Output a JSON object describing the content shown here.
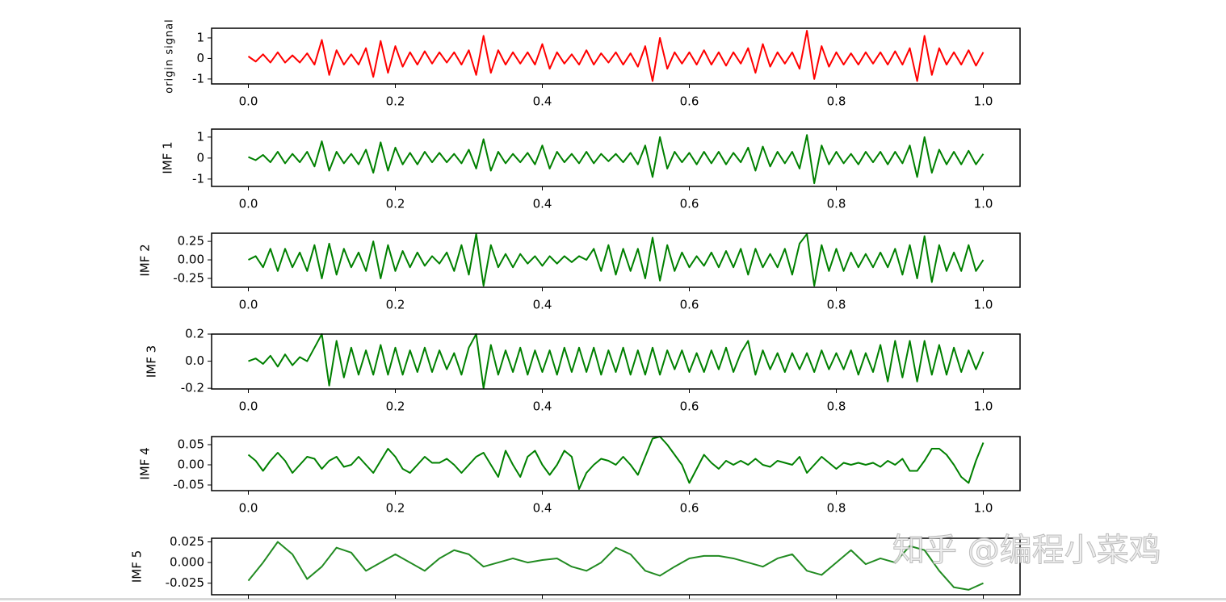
{
  "chart_data": [
    {
      "type": "line",
      "ylabel": "origin signal",
      "color": "#ff0000",
      "x": [
        0,
        0.01,
        0.02,
        0.03,
        0.04,
        0.05,
        0.06,
        0.07,
        0.08,
        0.09,
        0.1,
        0.11,
        0.12,
        0.13,
        0.14,
        0.15,
        0.16,
        0.17,
        0.18,
        0.19,
        0.2,
        0.21,
        0.22,
        0.23,
        0.24,
        0.25,
        0.26,
        0.27,
        0.28,
        0.29,
        0.3,
        0.31,
        0.32,
        0.33,
        0.34,
        0.35,
        0.36,
        0.37,
        0.38,
        0.39,
        0.4,
        0.41,
        0.42,
        0.43,
        0.44,
        0.45,
        0.46,
        0.47,
        0.48,
        0.49,
        0.5,
        0.51,
        0.52,
        0.53,
        0.54,
        0.55,
        0.56,
        0.57,
        0.58,
        0.59,
        0.6,
        0.61,
        0.62,
        0.63,
        0.64,
        0.65,
        0.66,
        0.67,
        0.68,
        0.69,
        0.7,
        0.71,
        0.72,
        0.73,
        0.74,
        0.75,
        0.76,
        0.77,
        0.78,
        0.79,
        0.8,
        0.81,
        0.82,
        0.83,
        0.84,
        0.85,
        0.86,
        0.87,
        0.88,
        0.89,
        0.9,
        0.91,
        0.92,
        0.93,
        0.94,
        0.95,
        0.96,
        0.97,
        0.98,
        0.99,
        1
      ],
      "values": [
        0.1,
        -0.15,
        0.2,
        -0.2,
        0.3,
        -0.2,
        0.15,
        -0.2,
        0.25,
        -0.3,
        0.9,
        -0.8,
        0.4,
        -0.3,
        0.2,
        -0.3,
        0.5,
        -0.9,
        0.85,
        -0.7,
        0.6,
        -0.4,
        0.3,
        -0.3,
        0.35,
        -0.25,
        0.3,
        -0.2,
        0.3,
        -0.3,
        0.4,
        -0.8,
        1.1,
        -0.7,
        0.4,
        -0.3,
        0.3,
        -0.25,
        0.3,
        -0.3,
        0.7,
        -0.5,
        0.3,
        -0.25,
        0.2,
        -0.3,
        0.4,
        -0.3,
        0.25,
        -0.2,
        0.3,
        -0.3,
        0.25,
        -0.4,
        0.6,
        -1.1,
        1.0,
        -0.5,
        0.3,
        -0.25,
        0.3,
        -0.3,
        0.4,
        -0.3,
        0.3,
        -0.35,
        0.3,
        -0.25,
        0.5,
        -0.7,
        0.7,
        -0.4,
        0.3,
        -0.25,
        0.3,
        -0.5,
        1.35,
        -1.0,
        0.6,
        -0.4,
        0.3,
        -0.3,
        0.25,
        -0.3,
        0.3,
        -0.25,
        0.3,
        -0.3,
        0.35,
        -0.3,
        0.5,
        -1.1,
        1.1,
        -0.8,
        0.5,
        -0.3,
        0.3,
        -0.3,
        0.4,
        -0.35,
        0.3
      ],
      "xlim": [
        -0.05,
        1.05
      ],
      "ylim": [
        -1.24,
        1.47
      ],
      "xticks": [
        {
          "value": 0,
          "label": "0.0"
        },
        0.2,
        0.4,
        0.6,
        0.8,
        {
          "value": 1,
          "label": "1.0"
        }
      ],
      "yticks": [
        -1,
        0,
        1
      ]
    },
    {
      "type": "line",
      "ylabel": "IMF 1",
      "color": "#008000",
      "x": [
        0,
        0.01,
        0.02,
        0.03,
        0.04,
        0.05,
        0.06,
        0.07,
        0.08,
        0.09,
        0.1,
        0.11,
        0.12,
        0.13,
        0.14,
        0.15,
        0.16,
        0.17,
        0.18,
        0.19,
        0.2,
        0.21,
        0.22,
        0.23,
        0.24,
        0.25,
        0.26,
        0.27,
        0.28,
        0.29,
        0.3,
        0.31,
        0.32,
        0.33,
        0.34,
        0.35,
        0.36,
        0.37,
        0.38,
        0.39,
        0.4,
        0.41,
        0.42,
        0.43,
        0.44,
        0.45,
        0.46,
        0.47,
        0.48,
        0.49,
        0.5,
        0.51,
        0.52,
        0.53,
        0.54,
        0.55,
        0.56,
        0.57,
        0.58,
        0.59,
        0.6,
        0.61,
        0.62,
        0.63,
        0.64,
        0.65,
        0.66,
        0.67,
        0.68,
        0.69,
        0.7,
        0.71,
        0.72,
        0.73,
        0.74,
        0.75,
        0.76,
        0.77,
        0.78,
        0.79,
        0.8,
        0.81,
        0.82,
        0.83,
        0.84,
        0.85,
        0.86,
        0.87,
        0.88,
        0.89,
        0.9,
        0.91,
        0.92,
        0.93,
        0.94,
        0.95,
        0.96,
        0.97,
        0.98,
        0.99,
        1
      ],
      "values": [
        0.05,
        -0.1,
        0.15,
        -0.2,
        0.3,
        -0.25,
        0.2,
        -0.2,
        0.3,
        -0.4,
        0.8,
        -0.6,
        0.3,
        -0.25,
        0.2,
        -0.3,
        0.4,
        -0.7,
        0.75,
        -0.6,
        0.5,
        -0.3,
        0.25,
        -0.3,
        0.3,
        -0.2,
        0.25,
        -0.2,
        0.2,
        -0.25,
        0.4,
        -0.5,
        0.9,
        -0.6,
        0.3,
        -0.25,
        0.2,
        -0.2,
        0.25,
        -0.3,
        0.6,
        -0.5,
        0.3,
        -0.2,
        0.2,
        -0.25,
        0.3,
        -0.25,
        0.2,
        -0.15,
        0.2,
        -0.2,
        0.25,
        -0.3,
        0.6,
        -0.9,
        1.0,
        -0.5,
        0.3,
        -0.2,
        0.25,
        -0.3,
        0.3,
        -0.25,
        0.3,
        -0.3,
        0.25,
        -0.2,
        0.5,
        -0.6,
        0.55,
        -0.4,
        0.3,
        -0.25,
        0.3,
        -0.5,
        1.1,
        -1.2,
        0.6,
        -0.3,
        0.3,
        -0.25,
        0.2,
        -0.3,
        0.3,
        -0.2,
        0.3,
        -0.3,
        0.3,
        -0.25,
        0.6,
        -0.9,
        1.0,
        -0.7,
        0.4,
        -0.3,
        0.3,
        -0.3,
        0.35,
        -0.3,
        0.2
      ],
      "xlim": [
        -0.05,
        1.05
      ],
      "ylim": [
        -1.35,
        1.38
      ],
      "xticks": [
        {
          "value": 0,
          "label": "0.0"
        },
        0.2,
        0.4,
        0.6,
        0.8,
        {
          "value": 1,
          "label": "1.0"
        }
      ],
      "yticks": [
        -1,
        0,
        1
      ]
    },
    {
      "type": "line",
      "ylabel": "IMF 2",
      "color": "#008000",
      "x": [
        0,
        0.01,
        0.02,
        0.03,
        0.04,
        0.05,
        0.06,
        0.07,
        0.08,
        0.09,
        0.1,
        0.11,
        0.12,
        0.13,
        0.14,
        0.15,
        0.16,
        0.17,
        0.18,
        0.19,
        0.2,
        0.21,
        0.22,
        0.23,
        0.24,
        0.25,
        0.26,
        0.27,
        0.28,
        0.29,
        0.3,
        0.31,
        0.32,
        0.33,
        0.34,
        0.35,
        0.36,
        0.37,
        0.38,
        0.39,
        0.4,
        0.41,
        0.42,
        0.43,
        0.44,
        0.45,
        0.46,
        0.47,
        0.48,
        0.49,
        0.5,
        0.51,
        0.52,
        0.53,
        0.54,
        0.55,
        0.56,
        0.57,
        0.58,
        0.59,
        0.6,
        0.61,
        0.62,
        0.63,
        0.64,
        0.65,
        0.66,
        0.67,
        0.68,
        0.69,
        0.7,
        0.71,
        0.72,
        0.73,
        0.74,
        0.75,
        0.76,
        0.77,
        0.78,
        0.79,
        0.8,
        0.81,
        0.82,
        0.83,
        0.84,
        0.85,
        0.86,
        0.87,
        0.88,
        0.89,
        0.9,
        0.91,
        0.92,
        0.93,
        0.94,
        0.95,
        0.96,
        0.97,
        0.98,
        0.99,
        1
      ],
      "values": [
        0.0,
        0.05,
        -0.1,
        0.15,
        -0.15,
        0.15,
        -0.1,
        0.1,
        -0.15,
        0.2,
        -0.25,
        0.22,
        -0.2,
        0.15,
        -0.1,
        0.1,
        -0.15,
        0.25,
        -0.25,
        0.2,
        -0.15,
        0.12,
        -0.1,
        0.1,
        -0.08,
        0.05,
        -0.05,
        0.1,
        -0.15,
        0.2,
        -0.2,
        0.35,
        -0.35,
        0.2,
        -0.1,
        0.08,
        -0.1,
        0.08,
        -0.05,
        0.05,
        -0.08,
        0.05,
        -0.05,
        0.05,
        -0.03,
        0.05,
        0.0,
        0.15,
        -0.15,
        0.2,
        -0.2,
        0.15,
        -0.15,
        0.15,
        -0.25,
        0.3,
        -0.28,
        0.2,
        -0.15,
        0.1,
        -0.1,
        0.05,
        -0.08,
        0.1,
        -0.1,
        0.12,
        -0.1,
        0.15,
        -0.2,
        0.15,
        -0.1,
        0.08,
        -0.1,
        0.15,
        -0.2,
        0.22,
        0.35,
        -0.35,
        0.2,
        -0.15,
        0.15,
        -0.15,
        0.1,
        -0.1,
        0.08,
        -0.1,
        0.1,
        -0.1,
        0.15,
        -0.2,
        0.2,
        -0.25,
        0.32,
        -0.3,
        0.2,
        -0.15,
        0.1,
        -0.15,
        0.2,
        -0.15,
        0.0
      ],
      "xlim": [
        -0.05,
        1.05
      ],
      "ylim": [
        -0.37,
        0.36
      ],
      "xticks": [
        {
          "value": 0,
          "label": "0.0"
        },
        0.2,
        0.4,
        0.6,
        0.8,
        {
          "value": 1,
          "label": "1.0"
        }
      ],
      "yticks": [
        -0.25,
        {
          "value": 0,
          "label": "0.00"
        },
        0.25
      ]
    },
    {
      "type": "line",
      "ylabel": "IMF 3",
      "color": "#008000",
      "x": [
        0,
        0.01,
        0.02,
        0.03,
        0.04,
        0.05,
        0.06,
        0.07,
        0.08,
        0.09,
        0.1,
        0.11,
        0.12,
        0.13,
        0.14,
        0.15,
        0.16,
        0.17,
        0.18,
        0.19,
        0.2,
        0.21,
        0.22,
        0.23,
        0.24,
        0.25,
        0.26,
        0.27,
        0.28,
        0.29,
        0.3,
        0.31,
        0.32,
        0.33,
        0.34,
        0.35,
        0.36,
        0.37,
        0.38,
        0.39,
        0.4,
        0.41,
        0.42,
        0.43,
        0.44,
        0.45,
        0.46,
        0.47,
        0.48,
        0.49,
        0.5,
        0.51,
        0.52,
        0.53,
        0.54,
        0.55,
        0.56,
        0.57,
        0.58,
        0.59,
        0.6,
        0.61,
        0.62,
        0.63,
        0.64,
        0.65,
        0.66,
        0.67,
        0.68,
        0.69,
        0.7,
        0.71,
        0.72,
        0.73,
        0.74,
        0.75,
        0.76,
        0.77,
        0.78,
        0.79,
        0.8,
        0.81,
        0.82,
        0.83,
        0.84,
        0.85,
        0.86,
        0.87,
        0.88,
        0.89,
        0.9,
        0.91,
        0.92,
        0.93,
        0.94,
        0.95,
        0.96,
        0.97,
        0.98,
        0.99,
        1
      ],
      "values": [
        0.0,
        0.02,
        -0.02,
        0.04,
        -0.04,
        0.05,
        -0.03,
        0.03,
        0.0,
        0.1,
        0.2,
        -0.18,
        0.15,
        -0.12,
        0.1,
        -0.1,
        0.08,
        -0.1,
        0.12,
        -0.1,
        0.1,
        -0.1,
        0.08,
        -0.08,
        0.1,
        -0.08,
        0.08,
        -0.06,
        0.06,
        -0.1,
        0.1,
        0.2,
        -0.2,
        0.12,
        -0.1,
        0.08,
        -0.08,
        0.1,
        -0.1,
        0.08,
        -0.08,
        0.08,
        -0.1,
        0.1,
        -0.08,
        0.1,
        -0.08,
        0.1,
        -0.1,
        0.08,
        -0.08,
        0.1,
        -0.1,
        0.08,
        -0.1,
        0.1,
        -0.1,
        0.08,
        -0.06,
        0.08,
        -0.08,
        0.06,
        -0.08,
        0.08,
        -0.06,
        0.1,
        -0.08,
        0.06,
        0.15,
        -0.1,
        0.08,
        -0.06,
        0.06,
        -0.08,
        0.06,
        -0.06,
        0.06,
        -0.08,
        0.08,
        -0.06,
        0.06,
        -0.06,
        0.08,
        -0.1,
        0.06,
        -0.08,
        0.12,
        -0.15,
        0.15,
        -0.12,
        0.15,
        -0.15,
        0.15,
        -0.1,
        0.12,
        -0.1,
        0.1,
        -0.08,
        0.08,
        -0.06,
        0.07
      ],
      "xlim": [
        -0.05,
        1.05
      ],
      "ylim": [
        -0.205,
        0.2
      ],
      "xticks": [
        {
          "value": 0,
          "label": "0.0"
        },
        0.2,
        0.4,
        0.6,
        0.8,
        {
          "value": 1,
          "label": "1.0"
        }
      ],
      "yticks": [
        -0.2,
        {
          "value": 0,
          "label": "0.0"
        },
        0.2
      ]
    },
    {
      "type": "line",
      "ylabel": "IMF 4",
      "color": "#008000",
      "x": [
        0,
        0.01,
        0.02,
        0.03,
        0.04,
        0.05,
        0.06,
        0.07,
        0.08,
        0.09,
        0.1,
        0.11,
        0.12,
        0.13,
        0.14,
        0.15,
        0.16,
        0.17,
        0.18,
        0.19,
        0.2,
        0.21,
        0.22,
        0.23,
        0.24,
        0.25,
        0.26,
        0.27,
        0.28,
        0.29,
        0.3,
        0.31,
        0.32,
        0.33,
        0.34,
        0.35,
        0.36,
        0.37,
        0.38,
        0.39,
        0.4,
        0.41,
        0.42,
        0.43,
        0.44,
        0.45,
        0.46,
        0.47,
        0.48,
        0.49,
        0.5,
        0.51,
        0.52,
        0.53,
        0.54,
        0.55,
        0.56,
        0.57,
        0.58,
        0.59,
        0.6,
        0.61,
        0.62,
        0.63,
        0.64,
        0.65,
        0.66,
        0.67,
        0.68,
        0.69,
        0.7,
        0.71,
        0.72,
        0.73,
        0.74,
        0.75,
        0.76,
        0.77,
        0.78,
        0.79,
        0.8,
        0.81,
        0.82,
        0.83,
        0.84,
        0.85,
        0.86,
        0.87,
        0.88,
        0.89,
        0.9,
        0.91,
        0.92,
        0.93,
        0.94,
        0.95,
        0.96,
        0.97,
        0.98,
        0.99,
        1
      ],
      "values": [
        0.025,
        0.01,
        -0.015,
        0.01,
        0.03,
        0.01,
        -0.02,
        0.0,
        0.02,
        0.015,
        -0.01,
        0.01,
        0.02,
        -0.005,
        0.0,
        0.02,
        0.0,
        -0.02,
        0.01,
        0.04,
        0.02,
        -0.01,
        -0.02,
        0.0,
        0.02,
        0.005,
        0.005,
        0.015,
        0.0,
        -0.02,
        0.0,
        0.02,
        0.03,
        0.0,
        -0.03,
        0.035,
        0.0,
        -0.03,
        0.02,
        0.035,
        0.0,
        -0.025,
        0.0,
        0.035,
        0.02,
        -0.06,
        -0.02,
        0.0,
        0.015,
        0.01,
        0.0,
        0.02,
        0.0,
        -0.025,
        0.02,
        0.065,
        0.07,
        0.05,
        0.025,
        0.0,
        -0.045,
        -0.01,
        0.025,
        0.005,
        -0.01,
        0.01,
        0.0,
        0.01,
        0.0,
        0.015,
        0.0,
        -0.005,
        0.01,
        0.005,
        0.0,
        0.02,
        -0.02,
        0.0,
        0.02,
        0.005,
        -0.01,
        0.005,
        0.0,
        0.005,
        0.0,
        0.005,
        -0.005,
        0.01,
        0.0,
        0.015,
        -0.015,
        -0.015,
        0.01,
        0.04,
        0.04,
        0.025,
        0.0,
        -0.03,
        -0.045,
        0.01,
        0.055
      ],
      "xlim": [
        -0.05,
        1.05
      ],
      "ylim": [
        -0.064,
        0.07
      ],
      "xticks": [
        {
          "value": 0,
          "label": "0.0"
        },
        0.2,
        0.4,
        0.6,
        0.8,
        {
          "value": 1,
          "label": "1.0"
        }
      ],
      "yticks": [
        -0.05,
        {
          "value": 0,
          "label": "0.00"
        },
        0.05
      ]
    },
    {
      "type": "line",
      "ylabel": "IMF 5",
      "color": "#228b22",
      "x": [
        0,
        0.02,
        0.04,
        0.06,
        0.08,
        0.1,
        0.12,
        0.14,
        0.16,
        0.18,
        0.2,
        0.22,
        0.24,
        0.26,
        0.28,
        0.3,
        0.32,
        0.34,
        0.36,
        0.38,
        0.4,
        0.42,
        0.44,
        0.46,
        0.48,
        0.5,
        0.52,
        0.54,
        0.56,
        0.58,
        0.6,
        0.62,
        0.64,
        0.66,
        0.68,
        0.7,
        0.72,
        0.74,
        0.76,
        0.78,
        0.8,
        0.82,
        0.84,
        0.86,
        0.88,
        0.9,
        0.92,
        0.94,
        0.96,
        0.98,
        1
      ],
      "values": [
        -0.022,
        0.0,
        0.025,
        0.01,
        -0.02,
        -0.005,
        0.018,
        0.012,
        -0.01,
        0.0,
        0.01,
        0.0,
        -0.01,
        0.005,
        0.015,
        0.01,
        -0.005,
        0.0,
        0.005,
        0.0,
        0.003,
        0.005,
        -0.005,
        -0.01,
        0.0,
        0.018,
        0.01,
        -0.01,
        -0.016,
        -0.005,
        0.005,
        0.008,
        0.008,
        0.005,
        0.0,
        -0.005,
        0.005,
        0.01,
        -0.01,
        -0.015,
        0.0,
        0.015,
        -0.002,
        0.005,
        0.0,
        0.02,
        0.015,
        -0.01,
        -0.03,
        -0.033,
        -0.025
      ],
      "xlim": [
        -0.05,
        1.05
      ],
      "ylim": [
        -0.039,
        0.0294
      ],
      "xticks": [
        {
          "value": 0,
          "label": "0.0"
        },
        0.2,
        0.4,
        0.6,
        0.8,
        {
          "value": 1,
          "label": "1.0"
        }
      ],
      "xtick_labels": false,
      "yticks": [
        -0.025,
        {
          "value": 0,
          "label": "0.000"
        },
        0.025
      ]
    }
  ],
  "watermark": "知乎 @编程小菜鸡"
}
